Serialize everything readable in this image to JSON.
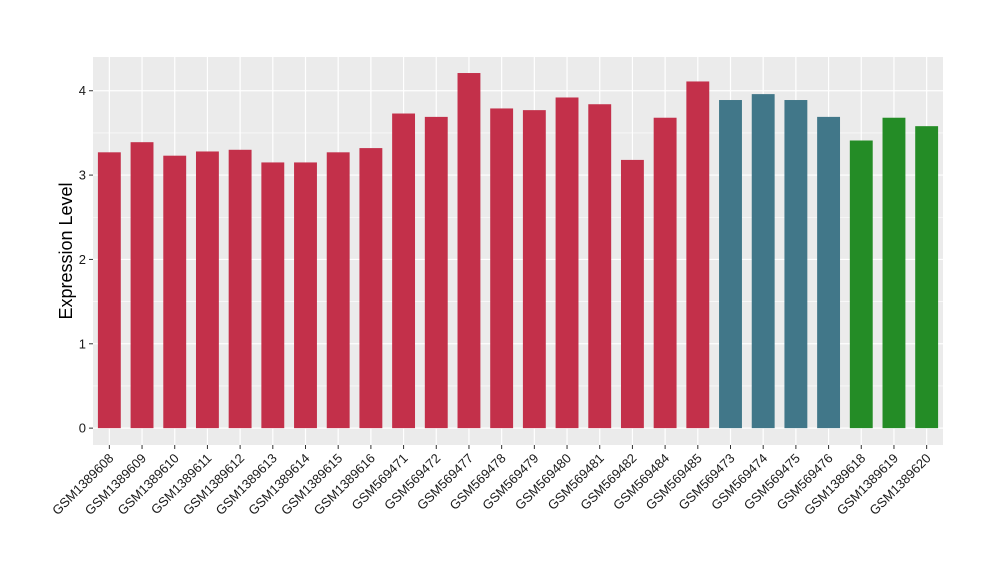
{
  "chart_data": {
    "type": "bar",
    "xlabel": "",
    "ylabel": "Expression Level",
    "ylim": [
      -0.2,
      4.4
    ],
    "yticks": [
      0,
      1,
      2,
      3,
      4
    ],
    "grid": true,
    "legend": "none",
    "categories": [
      "GSM1389608",
      "GSM1389609",
      "GSM1389610",
      "GSM1389611",
      "GSM1389612",
      "GSM1389613",
      "GSM1389614",
      "GSM1389615",
      "GSM1389616",
      "GSM569471",
      "GSM569472",
      "GSM569477",
      "GSM569478",
      "GSM569479",
      "GSM569480",
      "GSM569481",
      "GSM569482",
      "GSM569484",
      "GSM569485",
      "GSM569473",
      "GSM569474",
      "GSM569475",
      "GSM569476",
      "GSM1389618",
      "GSM1389619",
      "GSM1389620"
    ],
    "values": [
      3.27,
      3.39,
      3.23,
      3.28,
      3.3,
      3.15,
      3.15,
      3.27,
      3.32,
      3.73,
      3.69,
      4.21,
      3.79,
      3.77,
      3.92,
      3.84,
      3.18,
      3.68,
      4.11,
      3.89,
      3.96,
      3.89,
      3.69,
      3.41,
      3.68,
      3.58
    ],
    "bar_colors": [
      "#C3304A",
      "#C3304A",
      "#C3304A",
      "#C3304A",
      "#C3304A",
      "#C3304A",
      "#C3304A",
      "#C3304A",
      "#C3304A",
      "#C3304A",
      "#C3304A",
      "#C3304A",
      "#C3304A",
      "#C3304A",
      "#C3304A",
      "#C3304A",
      "#C3304A",
      "#C3304A",
      "#C3304A",
      "#417789",
      "#417789",
      "#417789",
      "#417789",
      "#248C26",
      "#248C26",
      "#248C26"
    ],
    "panel_background": "#EBEBEB",
    "gridline_color": "#FFFFFF"
  }
}
